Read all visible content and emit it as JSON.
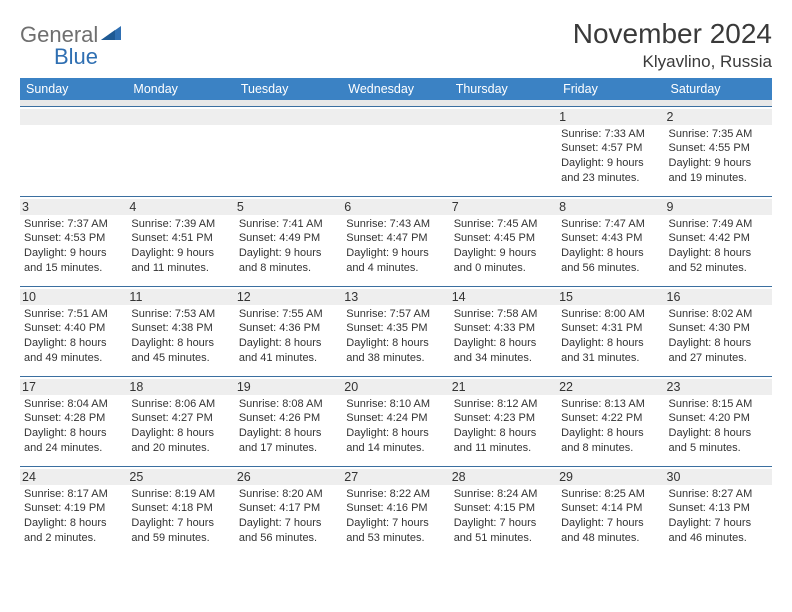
{
  "brand": {
    "part1": "General",
    "part2": "Blue"
  },
  "title": "November 2024",
  "location": "Klyavlino, Russia",
  "colors": {
    "header_bg": "#3b82c4",
    "header_text": "#ffffff",
    "daynum_bg": "#eeeeee",
    "cell_border": "#3b6fa0",
    "spacer_bg": "#e8e8e8",
    "logo_gray": "#6f6f6f",
    "logo_blue": "#2f6fb2"
  },
  "weekdays": [
    "Sunday",
    "Monday",
    "Tuesday",
    "Wednesday",
    "Thursday",
    "Friday",
    "Saturday"
  ],
  "weeks": [
    [
      {
        "n": "",
        "sunrise": "",
        "sunset": "",
        "day": ""
      },
      {
        "n": "",
        "sunrise": "",
        "sunset": "",
        "day": ""
      },
      {
        "n": "",
        "sunrise": "",
        "sunset": "",
        "day": ""
      },
      {
        "n": "",
        "sunrise": "",
        "sunset": "",
        "day": ""
      },
      {
        "n": "",
        "sunrise": "",
        "sunset": "",
        "day": ""
      },
      {
        "n": "1",
        "sunrise": "Sunrise: 7:33 AM",
        "sunset": "Sunset: 4:57 PM",
        "day": "Daylight: 9 hours and 23 minutes."
      },
      {
        "n": "2",
        "sunrise": "Sunrise: 7:35 AM",
        "sunset": "Sunset: 4:55 PM",
        "day": "Daylight: 9 hours and 19 minutes."
      }
    ],
    [
      {
        "n": "3",
        "sunrise": "Sunrise: 7:37 AM",
        "sunset": "Sunset: 4:53 PM",
        "day": "Daylight: 9 hours and 15 minutes."
      },
      {
        "n": "4",
        "sunrise": "Sunrise: 7:39 AM",
        "sunset": "Sunset: 4:51 PM",
        "day": "Daylight: 9 hours and 11 minutes."
      },
      {
        "n": "5",
        "sunrise": "Sunrise: 7:41 AM",
        "sunset": "Sunset: 4:49 PM",
        "day": "Daylight: 9 hours and 8 minutes."
      },
      {
        "n": "6",
        "sunrise": "Sunrise: 7:43 AM",
        "sunset": "Sunset: 4:47 PM",
        "day": "Daylight: 9 hours and 4 minutes."
      },
      {
        "n": "7",
        "sunrise": "Sunrise: 7:45 AM",
        "sunset": "Sunset: 4:45 PM",
        "day": "Daylight: 9 hours and 0 minutes."
      },
      {
        "n": "8",
        "sunrise": "Sunrise: 7:47 AM",
        "sunset": "Sunset: 4:43 PM",
        "day": "Daylight: 8 hours and 56 minutes."
      },
      {
        "n": "9",
        "sunrise": "Sunrise: 7:49 AM",
        "sunset": "Sunset: 4:42 PM",
        "day": "Daylight: 8 hours and 52 minutes."
      }
    ],
    [
      {
        "n": "10",
        "sunrise": "Sunrise: 7:51 AM",
        "sunset": "Sunset: 4:40 PM",
        "day": "Daylight: 8 hours and 49 minutes."
      },
      {
        "n": "11",
        "sunrise": "Sunrise: 7:53 AM",
        "sunset": "Sunset: 4:38 PM",
        "day": "Daylight: 8 hours and 45 minutes."
      },
      {
        "n": "12",
        "sunrise": "Sunrise: 7:55 AM",
        "sunset": "Sunset: 4:36 PM",
        "day": "Daylight: 8 hours and 41 minutes."
      },
      {
        "n": "13",
        "sunrise": "Sunrise: 7:57 AM",
        "sunset": "Sunset: 4:35 PM",
        "day": "Daylight: 8 hours and 38 minutes."
      },
      {
        "n": "14",
        "sunrise": "Sunrise: 7:58 AM",
        "sunset": "Sunset: 4:33 PM",
        "day": "Daylight: 8 hours and 34 minutes."
      },
      {
        "n": "15",
        "sunrise": "Sunrise: 8:00 AM",
        "sunset": "Sunset: 4:31 PM",
        "day": "Daylight: 8 hours and 31 minutes."
      },
      {
        "n": "16",
        "sunrise": "Sunrise: 8:02 AM",
        "sunset": "Sunset: 4:30 PM",
        "day": "Daylight: 8 hours and 27 minutes."
      }
    ],
    [
      {
        "n": "17",
        "sunrise": "Sunrise: 8:04 AM",
        "sunset": "Sunset: 4:28 PM",
        "day": "Daylight: 8 hours and 24 minutes."
      },
      {
        "n": "18",
        "sunrise": "Sunrise: 8:06 AM",
        "sunset": "Sunset: 4:27 PM",
        "day": "Daylight: 8 hours and 20 minutes."
      },
      {
        "n": "19",
        "sunrise": "Sunrise: 8:08 AM",
        "sunset": "Sunset: 4:26 PM",
        "day": "Daylight: 8 hours and 17 minutes."
      },
      {
        "n": "20",
        "sunrise": "Sunrise: 8:10 AM",
        "sunset": "Sunset: 4:24 PM",
        "day": "Daylight: 8 hours and 14 minutes."
      },
      {
        "n": "21",
        "sunrise": "Sunrise: 8:12 AM",
        "sunset": "Sunset: 4:23 PM",
        "day": "Daylight: 8 hours and 11 minutes."
      },
      {
        "n": "22",
        "sunrise": "Sunrise: 8:13 AM",
        "sunset": "Sunset: 4:22 PM",
        "day": "Daylight: 8 hours and 8 minutes."
      },
      {
        "n": "23",
        "sunrise": "Sunrise: 8:15 AM",
        "sunset": "Sunset: 4:20 PM",
        "day": "Daylight: 8 hours and 5 minutes."
      }
    ],
    [
      {
        "n": "24",
        "sunrise": "Sunrise: 8:17 AM",
        "sunset": "Sunset: 4:19 PM",
        "day": "Daylight: 8 hours and 2 minutes."
      },
      {
        "n": "25",
        "sunrise": "Sunrise: 8:19 AM",
        "sunset": "Sunset: 4:18 PM",
        "day": "Daylight: 7 hours and 59 minutes."
      },
      {
        "n": "26",
        "sunrise": "Sunrise: 8:20 AM",
        "sunset": "Sunset: 4:17 PM",
        "day": "Daylight: 7 hours and 56 minutes."
      },
      {
        "n": "27",
        "sunrise": "Sunrise: 8:22 AM",
        "sunset": "Sunset: 4:16 PM",
        "day": "Daylight: 7 hours and 53 minutes."
      },
      {
        "n": "28",
        "sunrise": "Sunrise: 8:24 AM",
        "sunset": "Sunset: 4:15 PM",
        "day": "Daylight: 7 hours and 51 minutes."
      },
      {
        "n": "29",
        "sunrise": "Sunrise: 8:25 AM",
        "sunset": "Sunset: 4:14 PM",
        "day": "Daylight: 7 hours and 48 minutes."
      },
      {
        "n": "30",
        "sunrise": "Sunrise: 8:27 AM",
        "sunset": "Sunset: 4:13 PM",
        "day": "Daylight: 7 hours and 46 minutes."
      }
    ]
  ]
}
